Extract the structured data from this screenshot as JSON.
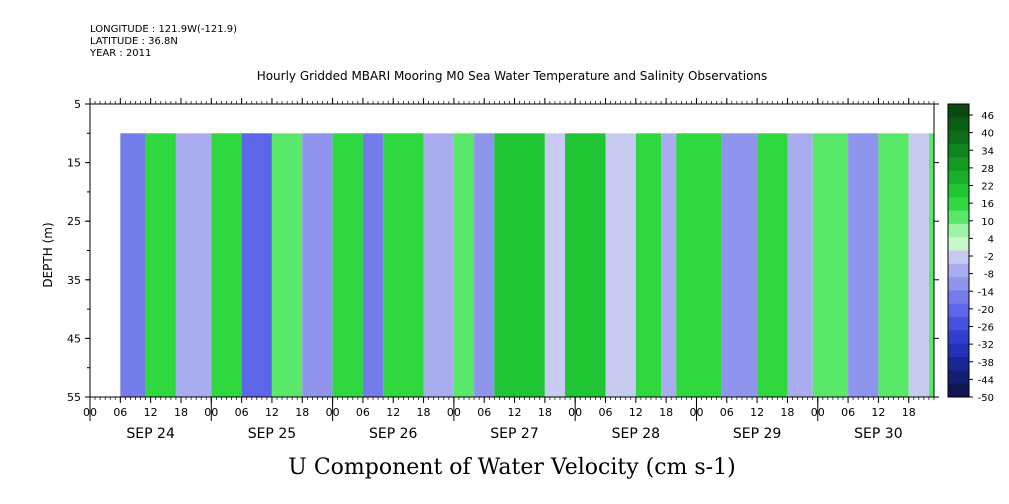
{
  "header": {
    "longitude": "LONGITUDE : 121.9W(-121.9)",
    "latitude": "LATITUDE : 36.8N",
    "year": "YEAR : 2011"
  },
  "chart_data": {
    "type": "heatmap",
    "title": "Hourly Gridded MBARI Mooring M0 Sea Water Temperature and Salinity Observations",
    "xlabel": "",
    "ylabel": "DEPTH (m)",
    "colorbar_label": "U Component of Water Velocity (cm s-1)",
    "ylim": [
      55,
      5
    ],
    "y_ticks": [
      5,
      15,
      25,
      35,
      45,
      55
    ],
    "x_hour_ticks": [
      "00",
      "06",
      "12",
      "18",
      "00",
      "06",
      "12",
      "18",
      "00",
      "06",
      "12",
      "18",
      "00",
      "06",
      "12",
      "18",
      "00",
      "06",
      "12",
      "18",
      "00",
      "06",
      "12",
      "18",
      "00",
      "06",
      "12",
      "18"
    ],
    "x_day_labels": [
      "SEP 24",
      "SEP 25",
      "SEP 26",
      "SEP 27",
      "SEP 28",
      "SEP 29",
      "SEP 30"
    ],
    "x_range_hours_from_sep24_00": [
      0,
      167
    ],
    "data_start": "SEP 24 06",
    "depth_range_m": [
      10,
      55
    ],
    "colorbar_levels": [
      "46",
      "40",
      "34",
      "28",
      "22",
      "16",
      "10",
      "4",
      "-2",
      "-8",
      "-14",
      "-20",
      "-26",
      "-32",
      "-38",
      "-44",
      "-50"
    ],
    "colorbar_colors": [
      "#0a4a10",
      "#0b5c14",
      "#0d6e18",
      "#10841e",
      "#139a24",
      "#18b02b",
      "#1fc532",
      "#2ed83e",
      "#5ae86a",
      "#9cf3a6",
      "#c8f8cc",
      "#c8caf2",
      "#a9adef",
      "#8f95ec",
      "#747ce9",
      "#5c66e6",
      "#4452dc",
      "#2f3fcf",
      "#2231b8",
      "#1a2796",
      "#141e72",
      "#0e1550"
    ],
    "phases": [
      {
        "start_hour": 6,
        "end_hour": 11,
        "u": -20
      },
      {
        "start_hour": 11,
        "end_hour": 17,
        "u": 14
      },
      {
        "start_hour": 17,
        "end_hour": 24,
        "u": -10
      },
      {
        "start_hour": 24,
        "end_hour": 30,
        "u": 12
      },
      {
        "start_hour": 30,
        "end_hour": 36,
        "u": -22
      },
      {
        "start_hour": 36,
        "end_hour": 42,
        "u": 10
      },
      {
        "start_hour": 42,
        "end_hour": 48,
        "u": -12
      },
      {
        "start_hour": 48,
        "end_hour": 54,
        "u": 14
      },
      {
        "start_hour": 54,
        "end_hour": 58,
        "u": -18
      },
      {
        "start_hour": 58,
        "end_hour": 66,
        "u": 16
      },
      {
        "start_hour": 66,
        "end_hour": 72,
        "u": -8
      },
      {
        "start_hour": 72,
        "end_hour": 76,
        "u": 10
      },
      {
        "start_hour": 76,
        "end_hour": 80,
        "u": -14
      },
      {
        "start_hour": 80,
        "end_hour": 90,
        "u": 18
      },
      {
        "start_hour": 90,
        "end_hour": 94,
        "u": -6
      },
      {
        "start_hour": 94,
        "end_hour": 102,
        "u": 18
      },
      {
        "start_hour": 102,
        "end_hour": 108,
        "u": -4
      },
      {
        "start_hour": 108,
        "end_hour": 113,
        "u": 14
      },
      {
        "start_hour": 113,
        "end_hour": 116,
        "u": -10
      },
      {
        "start_hour": 116,
        "end_hour": 125,
        "u": 16
      },
      {
        "start_hour": 125,
        "end_hour": 132,
        "u": -12
      },
      {
        "start_hour": 132,
        "end_hour": 138,
        "u": 12
      },
      {
        "start_hour": 138,
        "end_hour": 143,
        "u": -8
      },
      {
        "start_hour": 143,
        "end_hour": 150,
        "u": 10
      },
      {
        "start_hour": 150,
        "end_hour": 156,
        "u": -14
      },
      {
        "start_hour": 156,
        "end_hour": 162,
        "u": 8
      },
      {
        "start_hour": 162,
        "end_hour": 166,
        "u": -6
      },
      {
        "start_hour": 166,
        "end_hour": 167,
        "u": 10
      }
    ]
  }
}
